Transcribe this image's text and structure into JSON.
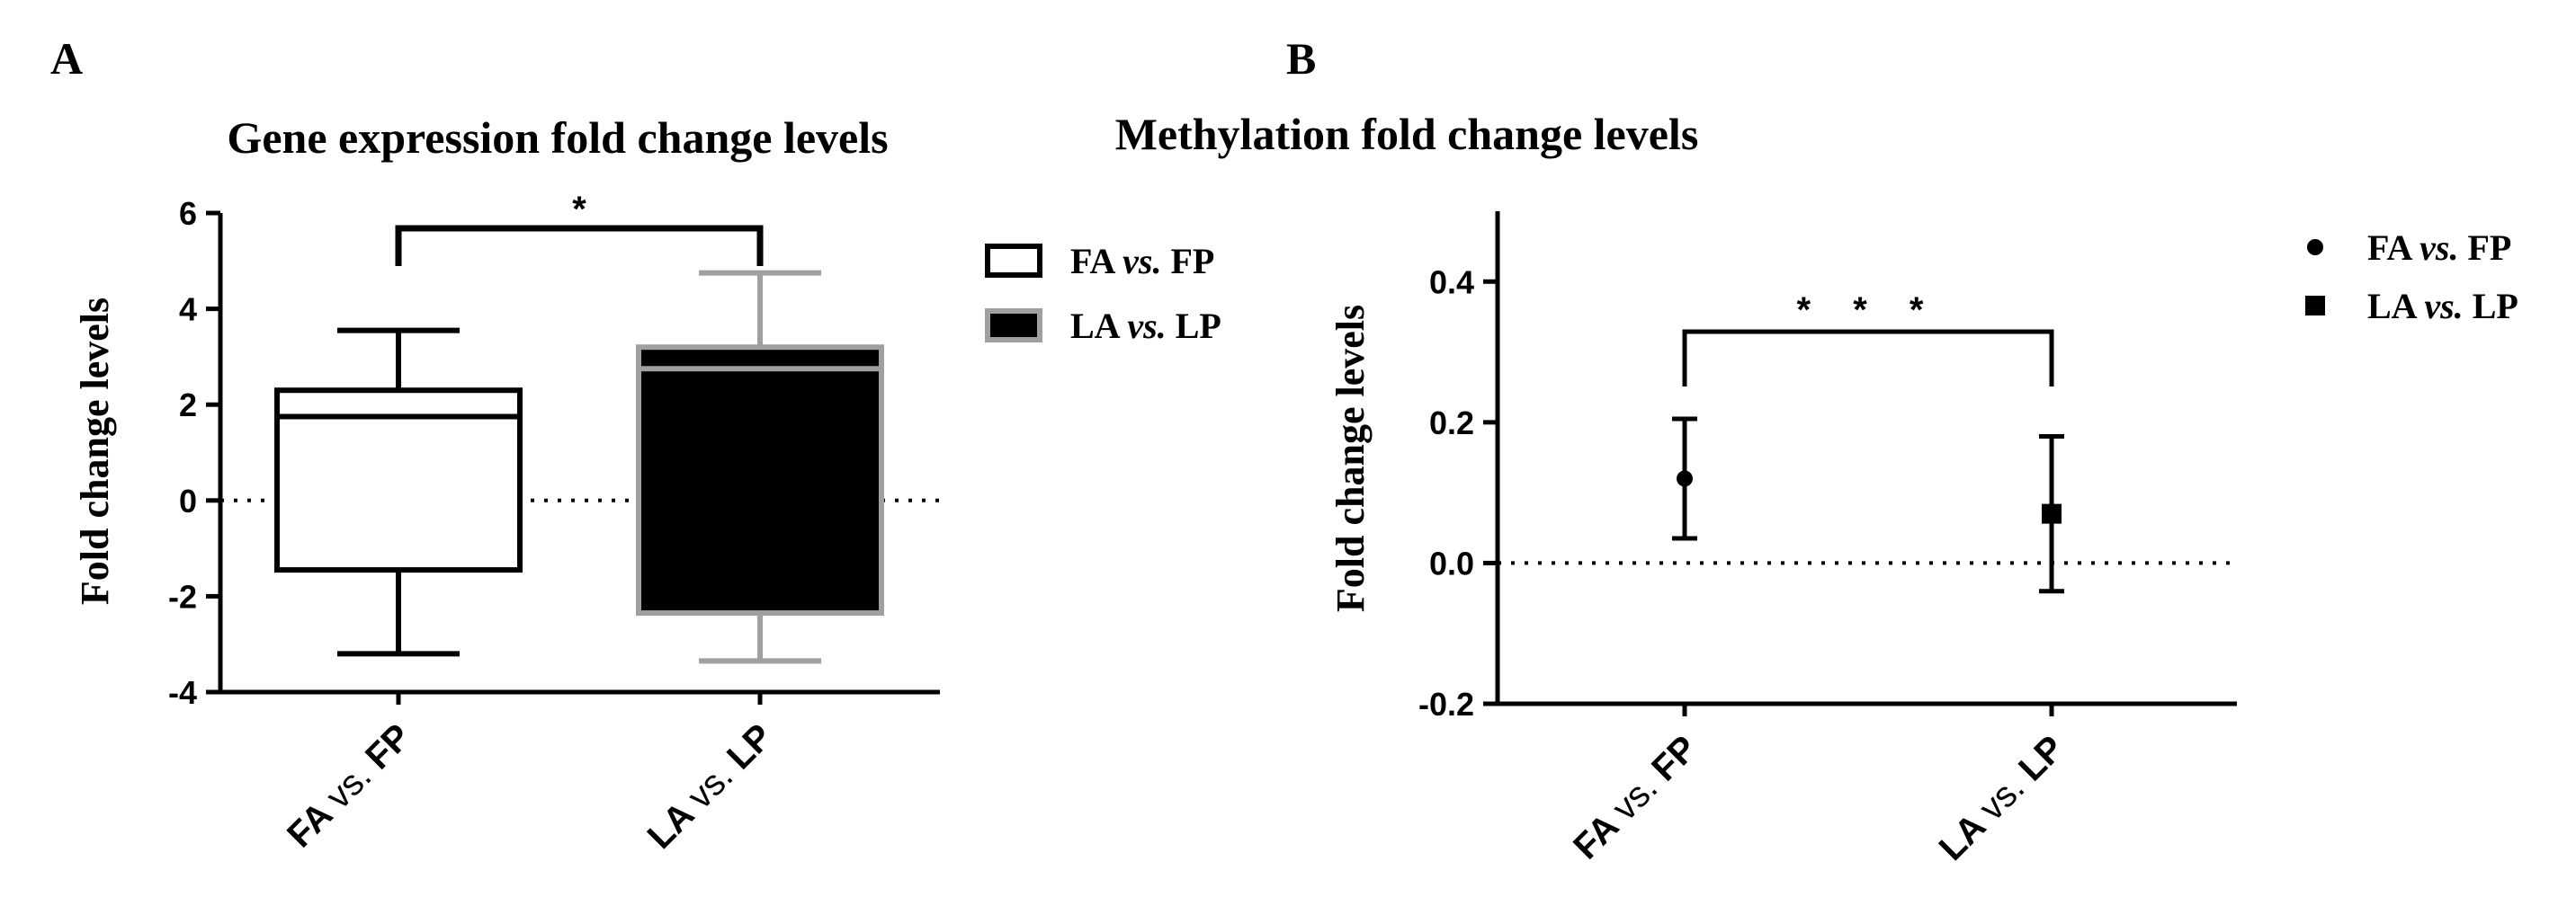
{
  "panels": [
    {
      "letter": "A"
    },
    {
      "letter": "B"
    }
  ],
  "chart_data": [
    {
      "type": "box",
      "title": "Gene expression fold change levels",
      "ylabel": "Fold change levels",
      "ylim": [
        -4,
        6
      ],
      "yticks": [
        "6",
        "4",
        "2",
        "0",
        "-2",
        "-4"
      ],
      "reference_line": 0,
      "categories": [
        {
          "prefix": "FA ",
          "mid": "vs.",
          "suffix": " FP"
        },
        {
          "prefix": "LA ",
          "mid": "vs.",
          "suffix": " LP"
        }
      ],
      "boxes": [
        {
          "whisker_low": -3.2,
          "q1": -1.45,
          "median": 1.75,
          "q3": 2.3,
          "whisker_high": 3.55,
          "fill": "#ffffff",
          "edge": "#000000"
        },
        {
          "whisker_low": -3.35,
          "q1": -2.35,
          "median": 2.75,
          "q3": 3.2,
          "whisker_high": 4.75,
          "fill": "#000000",
          "edge": "#a0a0a0"
        }
      ],
      "significance": {
        "from": 0,
        "to": 1,
        "label": "*"
      },
      "legend": {
        "placement": "right",
        "entries": [
          {
            "prefix": "FA ",
            "mid": "vs.",
            "suffix": " FP",
            "fill": "#ffffff",
            "edge": "#000000"
          },
          {
            "prefix": "LA ",
            "mid": "vs.",
            "suffix": " LP",
            "fill": "#000000",
            "edge": "#a0a0a0"
          }
        ]
      }
    },
    {
      "type": "scatter",
      "title": "Methylation  fold change levels",
      "ylabel": "Fold change levels",
      "ylim": [
        -0.2,
        0.5
      ],
      "yticks": [
        "0.4",
        "0.2",
        "0.0",
        "-0.2"
      ],
      "reference_line": 0,
      "categories": [
        {
          "prefix": "FA ",
          "mid": "vs.",
          "suffix": " FP"
        },
        {
          "prefix": "LA ",
          "mid": "vs.",
          "suffix": " LP"
        }
      ],
      "points": [
        {
          "value": 0.12,
          "low": 0.035,
          "high": 0.205,
          "marker": "circle"
        },
        {
          "value": 0.07,
          "low": -0.04,
          "high": 0.18,
          "marker": "square"
        }
      ],
      "significance": {
        "from": 0,
        "to": 1,
        "label": "* * *"
      },
      "legend": {
        "placement": "right",
        "entries": [
          {
            "prefix": "FA ",
            "mid": "vs.",
            "suffix": " FP",
            "marker": "circle"
          },
          {
            "prefix": "LA ",
            "mid": "vs.",
            "suffix": " LP",
            "marker": "square"
          }
        ]
      }
    }
  ]
}
